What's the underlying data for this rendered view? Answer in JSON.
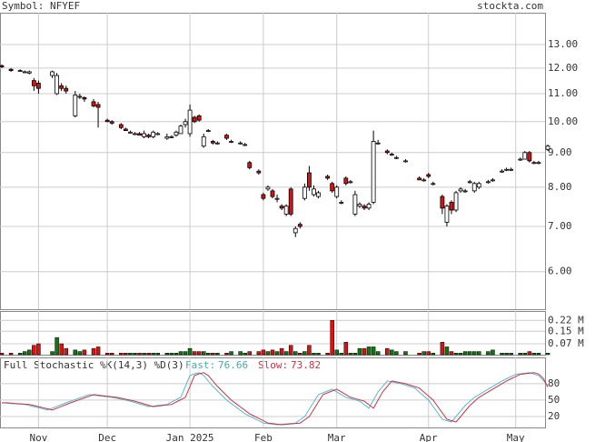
{
  "chart_data": {
    "type": "candlestick",
    "title": "Symbol: NFYEF",
    "source": "stockta.com",
    "log_scale": true,
    "grid": true,
    "up_color": "#ffffff",
    "down_color": "#dd1111",
    "ylim": [
      5.28,
      14.49
    ],
    "yticks": [
      {
        "value": 6,
        "label": "6.00"
      },
      {
        "value": 7,
        "label": "7.00"
      },
      {
        "value": 8,
        "label": "8.00"
      },
      {
        "value": 9,
        "label": "9.00"
      },
      {
        "value": 10,
        "label": "10.00"
      },
      {
        "value": 11,
        "label": "11.00"
      },
      {
        "value": 12,
        "label": "12.00"
      },
      {
        "value": 13,
        "label": "13.00"
      }
    ],
    "categories": [
      null,
      null,
      null,
      null,
      null,
      null,
      null,
      null,
      "Nov",
      null,
      null,
      null,
      null,
      null,
      null,
      null,
      null,
      null,
      null,
      null,
      null,
      null,
      null,
      "Dec",
      null,
      null,
      null,
      null,
      null,
      null,
      null,
      null,
      null,
      null,
      null,
      null,
      null,
      null,
      null,
      null,
      null,
      "Jan 2025",
      null,
      null,
      null,
      null,
      null,
      null,
      null,
      null,
      null,
      null,
      null,
      null,
      null,
      null,
      null,
      "Feb",
      null,
      null,
      null,
      null,
      null,
      null,
      null,
      null,
      null,
      null,
      null,
      null,
      null,
      null,
      null,
      "Mar",
      null,
      null,
      null,
      null,
      null,
      null,
      null,
      null,
      null,
      null,
      null,
      null,
      null,
      null,
      null,
      null,
      null,
      null,
      null,
      "Apr",
      null,
      null,
      null,
      null,
      null,
      null,
      null,
      null,
      null,
      null,
      null,
      null,
      null,
      null,
      null,
      null,
      null,
      null,
      "May",
      null,
      null,
      null,
      null,
      null,
      null
    ],
    "ohlc": [
      [
        12.1,
        12.15,
        12.0,
        12.05
      ],
      null,
      [
        11.95,
        12.0,
        11.85,
        11.9
      ],
      null,
      [
        11.9,
        11.95,
        11.85,
        11.9
      ],
      [
        11.85,
        11.9,
        11.8,
        11.85
      ],
      [
        11.8,
        11.9,
        11.75,
        11.85
      ],
      [
        11.5,
        11.6,
        11.1,
        11.3
      ],
      [
        11.4,
        11.5,
        11.0,
        11.2
      ],
      null,
      null,
      [
        11.7,
        11.9,
        11.6,
        11.85
      ],
      [
        11.0,
        11.8,
        10.95,
        11.7
      ],
      [
        11.3,
        11.4,
        11.1,
        11.2
      ],
      [
        11.2,
        11.3,
        11.0,
        11.1
      ],
      null,
      [
        10.2,
        11.1,
        10.15,
        10.95
      ],
      [
        10.9,
        11.0,
        10.8,
        10.9
      ],
      [
        10.85,
        10.9,
        10.7,
        10.8
      ],
      null,
      [
        10.7,
        10.8,
        10.5,
        10.55
      ],
      [
        10.6,
        10.7,
        9.8,
        10.5
      ],
      null,
      [
        10.05,
        10.1,
        10.0,
        10.0
      ],
      [
        10.0,
        10.05,
        9.9,
        9.95
      ],
      null,
      [
        9.9,
        9.95,
        9.75,
        9.8
      ],
      [
        9.75,
        9.8,
        9.7,
        9.7
      ],
      [
        9.65,
        9.7,
        9.6,
        9.65
      ],
      [
        9.6,
        9.65,
        9.55,
        9.6
      ],
      [
        9.6,
        9.65,
        9.55,
        9.55
      ],
      [
        9.5,
        9.7,
        9.45,
        9.6
      ],
      [
        9.55,
        9.6,
        9.45,
        9.5
      ],
      [
        9.5,
        9.7,
        9.45,
        9.65
      ],
      [
        9.6,
        9.65,
        9.55,
        9.6
      ],
      null,
      [
        9.45,
        9.6,
        9.4,
        9.5
      ],
      [
        9.5,
        9.55,
        9.45,
        9.5
      ],
      [
        9.55,
        9.7,
        9.5,
        9.65
      ],
      [
        9.6,
        9.9,
        9.6,
        9.85
      ],
      [
        9.9,
        10.1,
        9.8,
        10.0
      ],
      [
        9.6,
        10.6,
        9.5,
        10.4
      ],
      [
        10.15,
        10.2,
        9.95,
        10.0
      ],
      [
        10.2,
        10.25,
        10.0,
        10.05
      ],
      [
        9.2,
        9.6,
        9.15,
        9.5
      ],
      [
        9.7,
        9.75,
        9.65,
        9.7
      ],
      [
        9.35,
        9.4,
        9.25,
        9.3
      ],
      [
        9.3,
        9.35,
        9.25,
        9.3
      ],
      null,
      [
        9.55,
        9.6,
        9.4,
        9.45
      ],
      [
        9.35,
        9.4,
        9.3,
        9.35
      ],
      null,
      [
        9.3,
        9.35,
        9.25,
        9.3
      ],
      [
        9.25,
        9.3,
        9.2,
        9.25
      ],
      [
        8.7,
        8.75,
        8.5,
        8.55
      ],
      null,
      [
        8.45,
        8.5,
        8.35,
        8.4
      ],
      [
        7.8,
        7.85,
        7.65,
        7.7
      ],
      [
        7.95,
        8.05,
        7.9,
        8.0
      ],
      [
        7.9,
        7.95,
        7.7,
        7.75
      ],
      [
        7.7,
        7.8,
        7.6,
        7.7
      ],
      [
        7.5,
        7.55,
        7.4,
        7.45
      ],
      [
        7.3,
        7.55,
        7.25,
        7.5
      ],
      [
        7.95,
        8.0,
        7.25,
        7.3
      ],
      [
        6.85,
        7.0,
        6.75,
        6.95
      ],
      [
        7.05,
        7.1,
        6.95,
        7.0
      ],
      [
        7.7,
        8.1,
        7.65,
        8.0
      ],
      [
        8.4,
        8.6,
        7.9,
        8.0
      ],
      [
        7.8,
        8.05,
        7.75,
        7.95
      ],
      [
        7.75,
        7.9,
        7.7,
        7.85
      ],
      null,
      [
        8.3,
        8.35,
        8.2,
        8.25
      ],
      [
        8.1,
        8.15,
        7.85,
        7.9
      ],
      [
        7.75,
        8.05,
        7.7,
        8.0
      ],
      [
        7.6,
        7.65,
        7.55,
        7.6
      ],
      [
        8.25,
        8.3,
        8.05,
        8.1
      ],
      [
        8.15,
        8.2,
        8.1,
        8.15
      ],
      [
        7.3,
        7.9,
        7.25,
        7.8
      ],
      [
        7.5,
        7.6,
        7.45,
        7.55
      ],
      [
        7.5,
        7.55,
        7.4,
        7.45
      ],
      [
        7.45,
        7.6,
        7.4,
        7.55
      ],
      [
        7.6,
        9.7,
        7.55,
        9.35
      ],
      [
        9.3,
        9.4,
        9.25,
        9.3
      ],
      null,
      [
        9.05,
        9.1,
        8.95,
        9.0
      ],
      [
        8.95,
        9.0,
        8.9,
        8.95
      ],
      [
        8.85,
        8.9,
        8.8,
        8.85
      ],
      null,
      [
        8.75,
        8.8,
        8.7,
        8.75
      ],
      null,
      null,
      [
        8.25,
        8.3,
        8.2,
        8.2
      ],
      [
        8.2,
        8.25,
        8.15,
        8.2
      ],
      [
        8.35,
        8.4,
        8.25,
        8.3
      ],
      [
        8.1,
        8.15,
        8.05,
        8.1
      ],
      null,
      [
        7.75,
        7.8,
        7.3,
        7.45
      ],
      [
        7.1,
        7.55,
        7.0,
        7.5
      ],
      [
        7.6,
        7.65,
        7.3,
        7.4
      ],
      [
        7.4,
        7.9,
        7.35,
        7.85
      ],
      [
        7.9,
        8.0,
        7.85,
        7.95
      ],
      [
        7.9,
        7.95,
        7.85,
        7.9
      ],
      [
        8.15,
        8.2,
        8.1,
        8.15
      ],
      [
        7.9,
        8.15,
        7.85,
        8.1
      ],
      [
        8.0,
        8.15,
        7.95,
        8.1
      ],
      null,
      [
        8.15,
        8.2,
        8.1,
        8.15
      ],
      [
        8.2,
        8.25,
        8.15,
        8.2
      ],
      null,
      [
        8.45,
        8.5,
        8.4,
        8.45
      ],
      [
        8.5,
        8.55,
        8.45,
        8.5
      ],
      [
        8.5,
        8.55,
        8.45,
        8.5
      ],
      null,
      [
        8.8,
        8.85,
        8.75,
        8.8
      ],
      [
        8.8,
        9.05,
        8.8,
        9.0
      ],
      [
        9.0,
        9.05,
        8.7,
        8.75
      ],
      [
        8.7,
        8.75,
        8.65,
        8.7
      ],
      [
        8.7,
        8.75,
        8.65,
        8.7
      ],
      null,
      [
        9.1,
        9.25,
        9.05,
        9.2
      ]
    ],
    "volume": {
      "up_color": "#117711",
      "down_color": "#dd1111",
      "ylim": [
        0,
        0.28
      ],
      "yticks": [
        {
          "value": 0.07,
          "label": "0.07 M"
        },
        {
          "value": 0.15,
          "label": "0.15 M"
        },
        {
          "value": 0.22,
          "label": "0.22 M"
        }
      ],
      "values": [
        0.01,
        null,
        0.01,
        null,
        0.01,
        0.02,
        0.03,
        0.06,
        0.07,
        null,
        null,
        0.02,
        0.11,
        0.07,
        0.04,
        null,
        0.03,
        0.02,
        0.03,
        null,
        0.04,
        0.05,
        null,
        0.01,
        0.01,
        null,
        0.01,
        0.01,
        0.01,
        0.01,
        0.01,
        0.01,
        0.01,
        0.01,
        0.01,
        null,
        0.01,
        0.01,
        0.01,
        0.02,
        0.02,
        0.04,
        0.02,
        0.02,
        0.02,
        0.01,
        0.01,
        0.01,
        null,
        0.01,
        0.02,
        null,
        0.02,
        0.01,
        0.02,
        null,
        0.02,
        0.03,
        0.02,
        0.03,
        0.02,
        0.04,
        0.02,
        0.06,
        0.02,
        0.01,
        0.02,
        0.06,
        0.01,
        0.01,
        null,
        0.01,
        0.22,
        0.03,
        0.01,
        0.08,
        0.01,
        0.01,
        0.04,
        0.04,
        0.05,
        0.05,
        0.02,
        null,
        0.04,
        0.03,
        0.02,
        null,
        0.02,
        null,
        null,
        0.01,
        0.02,
        0.02,
        0.01,
        null,
        0.08,
        0.05,
        0.02,
        0.01,
        0.01,
        0.02,
        0.02,
        0.02,
        0.02,
        null,
        0.02,
        0.03,
        null,
        0.01,
        0.01,
        0.01,
        null,
        0.01,
        0.01,
        0.02,
        0.01,
        0.01,
        null,
        0.01
      ]
    },
    "stochastic": {
      "title": "Full Stochastic %K(14,3) %D(3)",
      "fast_label": "Fast:",
      "fast_value": 76.66,
      "slow_label": "Slow:",
      "slow_value": 73.82,
      "k_color": "#55bbcc",
      "d_color": "#cc3344",
      "ylim": [
        0,
        128
      ],
      "yticks": [
        20,
        50,
        80
      ],
      "k": [
        45,
        44.4,
        43.8,
        43.2,
        42.6,
        42,
        40,
        38,
        36,
        34,
        32,
        35.3,
        38.5,
        41.8,
        45,
        48,
        51,
        54,
        57,
        60,
        59,
        58,
        57,
        56,
        55,
        53.3,
        51.5,
        49.8,
        48,
        45.5,
        43,
        40.5,
        38,
        39,
        40,
        41,
        42,
        46.3,
        50.7,
        55,
        75,
        95,
        98,
        100,
        95,
        85,
        75,
        66.7,
        58.3,
        50,
        43.8,
        37.5,
        31.3,
        25,
        20.8,
        16.5,
        12.3,
        8,
        7,
        6,
        5,
        5.8,
        6.5,
        7.3,
        8,
        14,
        20,
        33.3,
        46.7,
        60,
        63.3,
        66.7,
        70,
        65,
        60,
        55,
        52.7,
        50.3,
        48,
        41.5,
        35,
        50,
        65,
        75,
        85,
        83.3,
        81.7,
        80,
        77.3,
        74.7,
        72,
        64.7,
        57.3,
        50,
        38.3,
        26.7,
        15,
        12.5,
        10,
        20,
        30,
        40,
        47.5,
        55,
        60,
        65,
        70,
        75,
        80,
        85,
        89,
        93,
        97,
        98,
        99,
        100,
        97.5,
        95,
        86,
        76.66
      ],
      "d": [
        45,
        45,
        44.4,
        43.8,
        43.2,
        42.6,
        42,
        40,
        38,
        36,
        34,
        32,
        35.3,
        38.5,
        41.8,
        45,
        48,
        51,
        54,
        57,
        60,
        59,
        58,
        57,
        56,
        55,
        53.3,
        51.5,
        49.8,
        48,
        45.5,
        43,
        40.5,
        38,
        39,
        40,
        41,
        42,
        46.3,
        50.7,
        55,
        75,
        95,
        98,
        100,
        95,
        85,
        75,
        66.7,
        58.3,
        50,
        43.8,
        37.5,
        31.3,
        25,
        20.8,
        16.5,
        12.3,
        8,
        7,
        6,
        5,
        5.8,
        6.5,
        7.3,
        8,
        14,
        20,
        33.3,
        46.7,
        60,
        63.3,
        66.7,
        70,
        65,
        60,
        55,
        52.7,
        50.3,
        48,
        41.5,
        35,
        50,
        65,
        75,
        85,
        83.3,
        81.7,
        80,
        77.3,
        74.7,
        72,
        64.7,
        57.3,
        50,
        38.3,
        26.7,
        15,
        12.5,
        10,
        20,
        30,
        40,
        47.5,
        55,
        60,
        65,
        70,
        75,
        80,
        85,
        89,
        93,
        97,
        98,
        99,
        100,
        97.5,
        90,
        73.82
      ]
    }
  }
}
